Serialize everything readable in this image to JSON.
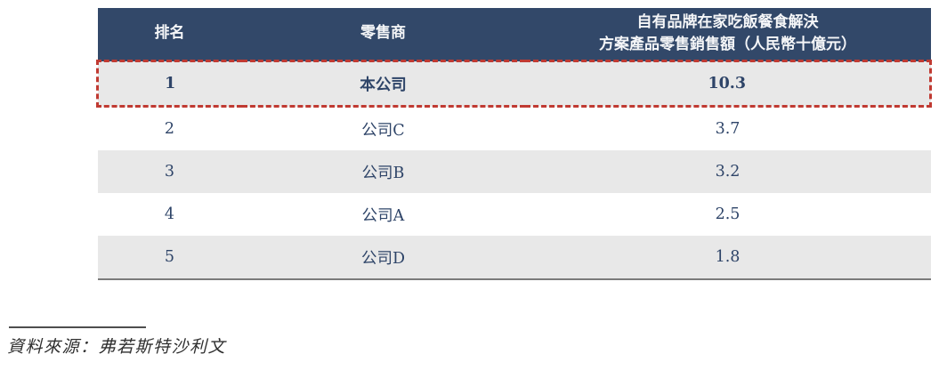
{
  "table": {
    "header": {
      "rank": "排名",
      "retailer": "零售商",
      "metric_line1": "自有品牌在家吃飯餐食解決",
      "metric_line2": "方案產品零售銷售額（人民幣十億元）"
    },
    "rows": [
      {
        "rank": "1",
        "retailer": "本公司",
        "value": "10.3",
        "highlighted": true
      },
      {
        "rank": "2",
        "retailer": "公司C",
        "value": "3.7",
        "highlighted": false
      },
      {
        "rank": "3",
        "retailer": "公司B",
        "value": "3.2",
        "highlighted": false
      },
      {
        "rank": "4",
        "retailer": "公司A",
        "value": "2.5",
        "highlighted": false
      },
      {
        "rank": "5",
        "retailer": "公司D",
        "value": "1.8",
        "highlighted": false
      }
    ]
  },
  "footnote": {
    "source": "資料來源：弗若斯特沙利文"
  },
  "colors": {
    "header_bg": "#324869",
    "alt_row_bg": "#e8e8e8",
    "body_text": "#2e4468",
    "highlight_border": "#c03a32",
    "table_bottom_border": "#7b7b7b"
  }
}
